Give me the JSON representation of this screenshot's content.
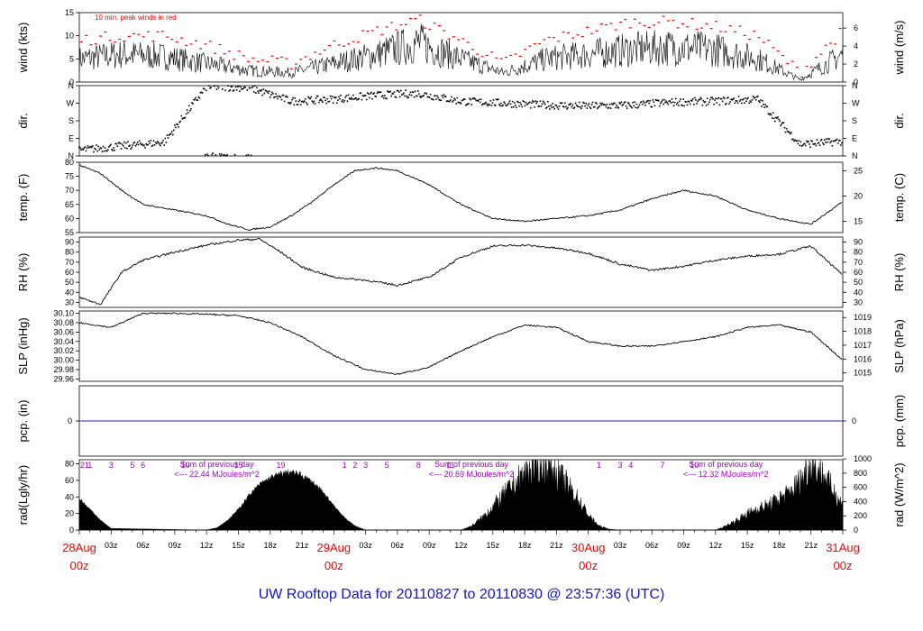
{
  "title": "UW Rooftop Data for 20110827  to  20110830 @ 23:57:36  (UTC)",
  "colors": {
    "series": "#000000",
    "peak": "#ff0000",
    "day_label": "#ff0000",
    "annotation": "#a000c8",
    "precip_line": "#2222cc",
    "title": "#1414d2"
  },
  "x_axis": {
    "day_labels": [
      {
        "day": "28Aug",
        "hour": "00z"
      },
      {
        "day": "29Aug",
        "hour": "00z"
      },
      {
        "day": "30Aug",
        "hour": "00z"
      },
      {
        "day": "31Aug",
        "hour": "00z"
      }
    ],
    "hour_labels": [
      "03z",
      "06z",
      "09z",
      "12z",
      "15z",
      "18z",
      "21z"
    ]
  },
  "chart_data": [
    {
      "type": "line",
      "panel": "wind",
      "ylabel": "wind (kts)",
      "y2label": "wind (m/s)",
      "ylim": [
        0,
        15
      ],
      "yticks": [
        "0",
        "5",
        "10",
        "15"
      ],
      "y2lim": [
        0,
        7.72
      ],
      "y2ticks": [
        "0",
        "2",
        "4",
        "6"
      ],
      "annotation": "10 min. peak winds in red",
      "series": [
        {
          "x": [
            0,
            4,
            8,
            12,
            16,
            20,
            24,
            28,
            32,
            36,
            40,
            44,
            48,
            52,
            56,
            60,
            64,
            68,
            72
          ],
          "values": [
            5,
            6,
            5.5,
            4,
            2.5,
            2,
            4,
            6,
            8.5,
            5,
            2,
            5,
            6,
            7,
            7.5,
            7,
            5,
            0.5,
            6
          ]
        },
        {
          "x": [
            0,
            4,
            8,
            12,
            16,
            20,
            24,
            28,
            32,
            36,
            40,
            44,
            48,
            52,
            56,
            60,
            64,
            68,
            72
          ],
          "values": [
            9,
            10,
            10,
            8,
            5,
            4,
            8,
            11,
            13.5,
            9,
            4,
            9,
            11,
            13,
            13,
            12,
            10,
            2,
            11
          ]
        }
      ]
    },
    {
      "type": "scatter",
      "panel": "dir",
      "ylabel": "dir.",
      "y2label": "dir.",
      "yticks": [
        "N",
        "E",
        "S",
        "W",
        "N"
      ],
      "ylim": [
        0,
        360
      ],
      "x": [
        0,
        4,
        8,
        12,
        16,
        20,
        24,
        28,
        32,
        36,
        40,
        44,
        48,
        52,
        56,
        60,
        64,
        68,
        72
      ],
      "values": [
        30,
        50,
        70,
        355,
        350,
        280,
        290,
        310,
        320,
        280,
        270,
        260,
        255,
        260,
        275,
        280,
        290,
        60,
        75
      ]
    },
    {
      "type": "line",
      "panel": "temp",
      "ylabel": "temp. (F)",
      "y2label": "temp. (C)",
      "ylim": [
        55,
        80
      ],
      "yticks": [
        "55",
        "60",
        "65",
        "70",
        "75",
        "80"
      ],
      "y2ticks": [
        "15",
        "20",
        "25"
      ],
      "x": [
        0,
        2,
        4,
        6,
        9,
        12,
        14,
        16,
        18,
        20,
        22,
        24,
        26,
        28,
        30,
        33,
        36,
        39,
        42,
        45,
        48,
        51,
        54,
        57,
        60,
        63,
        66,
        69,
        72
      ],
      "values": [
        79,
        76,
        70,
        65,
        63,
        61,
        58,
        56,
        57,
        61,
        66,
        72,
        77,
        78,
        77,
        72,
        65,
        60,
        59,
        60,
        61,
        63,
        67,
        70,
        68,
        63,
        60,
        58,
        66
      ]
    },
    {
      "type": "line",
      "panel": "rh",
      "ylabel": "RH (%)",
      "y2label": "RH (%)",
      "ylim": [
        25,
        95
      ],
      "yticks": [
        "30",
        "40",
        "50",
        "60",
        "70",
        "80",
        "90"
      ],
      "x": [
        0,
        2,
        4,
        6,
        9,
        12,
        15,
        17,
        19,
        21,
        24,
        27,
        30,
        33,
        36,
        39,
        42,
        45,
        48,
        51,
        54,
        57,
        60,
        63,
        66,
        69,
        72
      ],
      "values": [
        35,
        28,
        60,
        72,
        80,
        87,
        92,
        93,
        80,
        65,
        55,
        52,
        47,
        55,
        75,
        86,
        87,
        84,
        79,
        68,
        62,
        66,
        72,
        76,
        78,
        86,
        57
      ]
    },
    {
      "type": "line",
      "panel": "slp",
      "ylabel": "SLP (inHg)",
      "y2label": "SLP (hPa)",
      "ylim": [
        29.955,
        30.105
      ],
      "yticks": [
        "29.96",
        "29.98",
        "30.00",
        "30.02",
        "30.04",
        "30.06",
        "30.08",
        "30.10"
      ],
      "y2ticks": [
        "1015",
        "1016",
        "1017",
        "1018",
        "1019"
      ],
      "x": [
        0,
        3,
        6,
        9,
        12,
        15,
        18,
        21,
        24,
        27,
        30,
        33,
        36,
        39,
        42,
        45,
        48,
        51,
        54,
        57,
        60,
        63,
        66,
        69,
        72
      ],
      "values": [
        30.08,
        30.07,
        30.1,
        30.1,
        30.098,
        30.095,
        30.08,
        30.05,
        30.01,
        29.98,
        29.97,
        29.985,
        30.02,
        30.05,
        30.075,
        30.07,
        30.04,
        30.03,
        30.03,
        30.04,
        30.05,
        30.07,
        30.075,
        30.06,
        30.0
      ]
    },
    {
      "type": "line",
      "panel": "pcp",
      "ylabel": "pcp. (in)",
      "y2label": "pcp. (mm)",
      "yticks": [
        "0"
      ],
      "y2ticks": [
        "0"
      ],
      "x": [
        0,
        72
      ],
      "values": [
        0,
        0
      ]
    },
    {
      "type": "area",
      "panel": "rad",
      "ylabel": "rad(Lgly/hr)",
      "y2label": "rad (W/m^2)",
      "ylim": [
        0,
        85
      ],
      "yticks": [
        "0",
        "20",
        "40",
        "60",
        "80"
      ],
      "y2ticks": [
        "0",
        "200",
        "400",
        "600",
        "800",
        "1000"
      ],
      "x": [
        0,
        1,
        2,
        3,
        12,
        13,
        14,
        15,
        16,
        17,
        18,
        19,
        20,
        21,
        22,
        23,
        24,
        25,
        26,
        27,
        36,
        37,
        38,
        39,
        40,
        41,
        42,
        43,
        44,
        45,
        46,
        47,
        48,
        49,
        50,
        51,
        60,
        61,
        62,
        63,
        64,
        65,
        66,
        67,
        68,
        69,
        70,
        71,
        72
      ],
      "values": [
        38,
        25,
        12,
        2,
        0,
        3,
        12,
        25,
        42,
        55,
        63,
        68,
        70,
        66,
        58,
        45,
        30,
        15,
        5,
        0,
        0,
        5,
        15,
        28,
        42,
        55,
        68,
        78,
        80,
        70,
        55,
        38,
        18,
        5,
        1,
        0,
        0,
        5,
        12,
        20,
        26,
        30,
        38,
        45,
        60,
        80,
        70,
        50,
        30
      ],
      "day_sums": [
        {
          "text": "Sum of previous day",
          "value": "<--- 22.44 MJoules/m^2"
        },
        {
          "text": "Sum of previous day",
          "value": "<--- 20.69 MJoules/m^2"
        },
        {
          "text": "Sum of previous day",
          "value": "<--- 12.32 MJoules/m^2"
        }
      ],
      "hour_marks": [
        "21",
        "1",
        "3",
        "5",
        "6",
        "10",
        "15",
        "19",
        "1",
        "2",
        "3",
        "5",
        "8",
        "11",
        "1",
        "3",
        "4",
        "7",
        "10"
      ]
    }
  ]
}
